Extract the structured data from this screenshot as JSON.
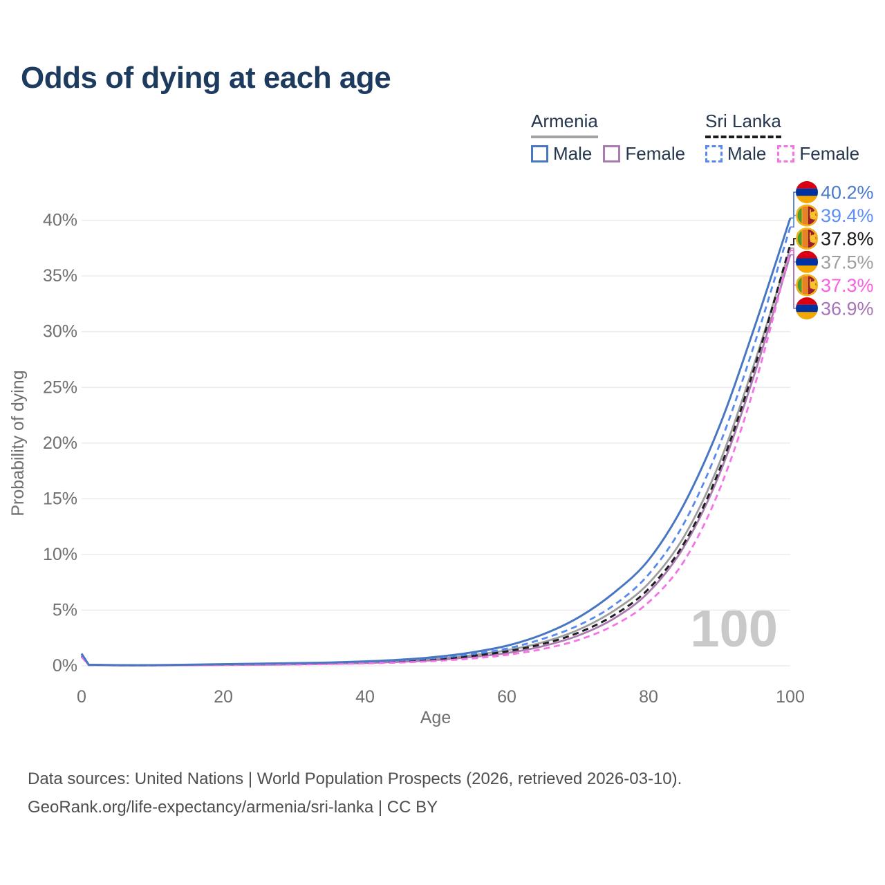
{
  "title": "Odds of dying at each age",
  "legend": {
    "groups": [
      {
        "title": "Armenia",
        "line_style": "solid",
        "line_color": "#a2a2a2",
        "items": [
          {
            "label": "Male",
            "series": "armenia_male"
          },
          {
            "label": "Female",
            "series": "armenia_female"
          }
        ]
      },
      {
        "title": "Sri Lanka",
        "line_style": "dashed",
        "line_color": "#1c1c1c",
        "items": [
          {
            "label": "Male",
            "series": "srilanka_male"
          },
          {
            "label": "Female",
            "series": "srilanka_female"
          }
        ]
      }
    ]
  },
  "chart_data": {
    "type": "line",
    "title": "Odds of dying at each age",
    "xlabel": "Age",
    "ylabel": "Probability of dying",
    "watermark": "100",
    "grid": true,
    "legend_position": "top-right",
    "xlim": [
      0,
      100
    ],
    "ylim_percent": [
      0,
      42
    ],
    "xticks": [
      0,
      20,
      40,
      60,
      80,
      100
    ],
    "yticks": [
      {
        "value": 0,
        "label": "0%"
      },
      {
        "value": 5,
        "label": "5%"
      },
      {
        "value": 10,
        "label": "10%"
      },
      {
        "value": 15,
        "label": "15%"
      },
      {
        "value": 20,
        "label": "20%"
      },
      {
        "value": 25,
        "label": "25%"
      },
      {
        "value": 30,
        "label": "30%"
      },
      {
        "value": 35,
        "label": "35%"
      },
      {
        "value": 40,
        "label": "40%"
      }
    ],
    "x": [
      0,
      1,
      5,
      10,
      15,
      20,
      25,
      30,
      35,
      40,
      45,
      50,
      55,
      60,
      65,
      70,
      75,
      80,
      85,
      90,
      95,
      100
    ],
    "series": [
      {
        "id": "armenia_total",
        "name": "Armenia (both sexes)",
        "country": "armenia",
        "color": "#9d9d9d",
        "label_color": "#9d9d9d",
        "dash": "solid",
        "width": 2.8,
        "values": [
          1.0,
          0.09,
          0.05,
          0.05,
          0.08,
          0.12,
          0.15,
          0.19,
          0.25,
          0.33,
          0.45,
          0.63,
          0.95,
          1.4,
          2.1,
          3.2,
          4.9,
          7.4,
          11.6,
          18.2,
          27.3,
          37.5
        ],
        "end_label": "37.5%"
      },
      {
        "id": "armenia_female",
        "name": "Armenia Female",
        "country": "armenia",
        "color": "#a97bb0",
        "label_color": "#a873b8",
        "dash": "solid",
        "width": 2.8,
        "values": [
          0.9,
          0.08,
          0.04,
          0.04,
          0.06,
          0.08,
          0.1,
          0.13,
          0.18,
          0.25,
          0.36,
          0.52,
          0.78,
          1.15,
          1.75,
          2.7,
          4.2,
          6.6,
          10.7,
          17.2,
          26.3,
          36.9
        ],
        "end_label": "36.9%"
      },
      {
        "id": "srilanka_total",
        "name": "Sri Lanka (both sexes)",
        "country": "srilanka",
        "color": "#1f1f1f",
        "label_color": "#1a1a1a",
        "dash": "dashed",
        "width": 3,
        "values": [
          0.85,
          0.08,
          0.05,
          0.05,
          0.08,
          0.11,
          0.14,
          0.18,
          0.23,
          0.3,
          0.42,
          0.6,
          0.88,
          1.3,
          1.95,
          2.95,
          4.5,
          6.9,
          11.0,
          17.6,
          26.9,
          37.8
        ],
        "end_label": "37.8%"
      },
      {
        "id": "srilanka_male",
        "name": "Sri Lanka Male",
        "country": "srilanka",
        "color": "#568af0",
        "label_color": "#5d8ef5",
        "dash": "dashed",
        "width": 2.8,
        "values": [
          0.9,
          0.09,
          0.05,
          0.05,
          0.09,
          0.14,
          0.17,
          0.21,
          0.27,
          0.36,
          0.5,
          0.7,
          1.05,
          1.55,
          2.4,
          3.6,
          5.4,
          8.2,
          12.8,
          19.8,
          29.0,
          39.4
        ],
        "end_label": "39.4%"
      },
      {
        "id": "srilanka_female",
        "name": "Sri Lanka Female",
        "country": "srilanka",
        "color": "#f573e6",
        "label_color": "#fb5fe3",
        "dash": "dashed",
        "width": 2.8,
        "values": [
          0.8,
          0.07,
          0.04,
          0.04,
          0.05,
          0.07,
          0.09,
          0.12,
          0.16,
          0.22,
          0.3,
          0.44,
          0.65,
          0.98,
          1.5,
          2.3,
          3.6,
          5.7,
          9.4,
          15.8,
          25.2,
          37.3
        ],
        "end_label": "37.3%"
      },
      {
        "id": "armenia_male",
        "name": "Armenia Male",
        "country": "armenia",
        "color": "#4877c2",
        "label_color": "#4a7ac8",
        "dash": "solid",
        "width": 3,
        "values": [
          1.1,
          0.1,
          0.06,
          0.06,
          0.1,
          0.15,
          0.19,
          0.24,
          0.3,
          0.4,
          0.55,
          0.8,
          1.2,
          1.8,
          2.8,
          4.3,
          6.5,
          9.5,
          14.5,
          21.5,
          30.5,
          40.2
        ],
        "end_label": "40.2%"
      }
    ],
    "flag_colors": {
      "armenia": [
        "#D90012",
        "#0033A0",
        "#F2A800"
      ],
      "srilanka": {
        "border": "#F3B515",
        "green": "#4E9A2F",
        "orange": "#E8812C",
        "maroon": "#9B1C31",
        "lion": "#F7C331"
      }
    }
  },
  "footer": {
    "line1": "Data sources: United Nations | World Population Prospects (2026, retrieved 2026-03-10).",
    "line2": "GeoRank.org/life-expectancy/armenia/sri-lanka | CC BY"
  }
}
